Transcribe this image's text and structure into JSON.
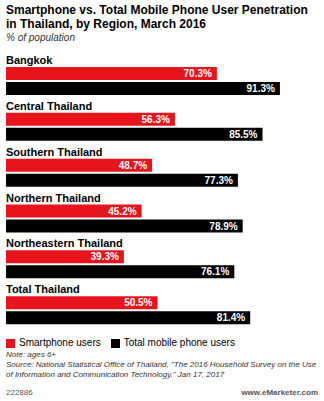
{
  "chart_data": {
    "type": "bar",
    "orientation": "horizontal",
    "title": "Smartphone vs. Total Mobile Phone User Penetration in Thailand, by Region, March 2016",
    "subtitle": "% of population",
    "categories": [
      "Bangkok",
      "Central Thailand",
      "Southern Thailand",
      "Northern Thailand",
      "Northeastern Thailand",
      "Total Thailand"
    ],
    "series": [
      {
        "name": "Smartphone users",
        "color": "#e8141b",
        "values": [
          70.3,
          56.3,
          48.7,
          45.2,
          39.3,
          50.5
        ],
        "value_labels": [
          "70.3%",
          "56.3%",
          "48.7%",
          "45.2%",
          "39.3%",
          "50.5%"
        ]
      },
      {
        "name": "Total mobile phone users",
        "color": "#000000",
        "values": [
          91.3,
          85.5,
          77.3,
          78.9,
          76.1,
          81.4
        ],
        "value_labels": [
          "91.3%",
          "85.5%",
          "77.3%",
          "78.9%",
          "76.1%",
          "81.4%"
        ]
      }
    ],
    "xlim": [
      0,
      100
    ],
    "tick_labels": false,
    "data_labels": true,
    "legend": "bottom-left",
    "note": "Note: ages 6+",
    "source": "Source: National Statistical Office of Thailand, \"The 2016 Household Survey on the Use of Information and Communication Technology,\" Jan 17, 2017",
    "chart_id": "222886",
    "credit": "www.eMarketer.com"
  }
}
